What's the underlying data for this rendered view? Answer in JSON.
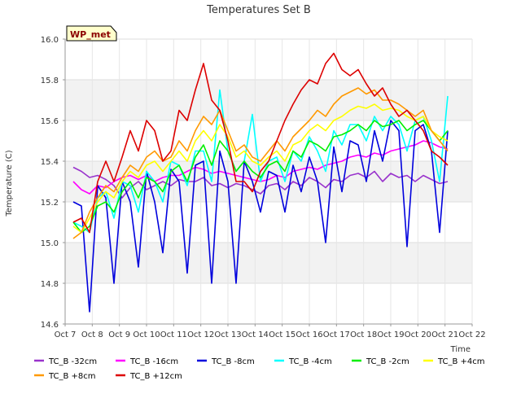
{
  "chart_data": {
    "type": "line",
    "title": "Temperatures Set B",
    "xlabel": "Time",
    "ylabel": "Temperature (C)",
    "badge": "WP_met",
    "xlim": [
      7,
      22
    ],
    "ylim": [
      14.6,
      16.0
    ],
    "x_ticks": [
      {
        "v": 7,
        "label": "Oct 7"
      },
      {
        "v": 8,
        "label": "Oct 8"
      },
      {
        "v": 9,
        "label": "Oct 9"
      },
      {
        "v": 10,
        "label": "Oct 10"
      },
      {
        "v": 11,
        "label": "Oct 11"
      },
      {
        "v": 12,
        "label": "Oct 12"
      },
      {
        "v": 13,
        "label": "Oct 13"
      },
      {
        "v": 14,
        "label": "Oct 14"
      },
      {
        "v": 15,
        "label": "Oct 15"
      },
      {
        "v": 16,
        "label": "Oct 16"
      },
      {
        "v": 17,
        "label": "Oct 17"
      },
      {
        "v": 18,
        "label": "Oct 18"
      },
      {
        "v": 19,
        "label": "Oct 19"
      },
      {
        "v": 20,
        "label": "Oct 20"
      },
      {
        "v": 21,
        "label": "Oct 21"
      },
      {
        "v": 22,
        "label": "Oct 22"
      }
    ],
    "y_ticks": [
      {
        "v": 14.6,
        "label": "14.6"
      },
      {
        "v": 14.8,
        "label": "14.8"
      },
      {
        "v": 15.0,
        "label": "15.0"
      },
      {
        "v": 15.2,
        "label": "15.2"
      },
      {
        "v": 15.4,
        "label": "15.4"
      },
      {
        "v": 15.6,
        "label": "15.6"
      },
      {
        "v": 15.8,
        "label": "15.8"
      },
      {
        "v": 16.0,
        "label": "16.0"
      }
    ],
    "grid": true,
    "legend_position": "bottom",
    "series": [
      {
        "name": "TC_B -32cm",
        "color": "#9933cc",
        "x": [
          7.3,
          7.6,
          7.9,
          8.2,
          8.5,
          8.8,
          9.1,
          9.4,
          9.7,
          10.0,
          10.3,
          10.6,
          10.9,
          11.2,
          11.5,
          11.8,
          12.1,
          12.4,
          12.7,
          13.0,
          13.3,
          13.6,
          13.9,
          14.2,
          14.5,
          14.8,
          15.1,
          15.4,
          15.7,
          16.0,
          16.3,
          16.6,
          16.9,
          17.2,
          17.5,
          17.8,
          18.1,
          18.4,
          18.7,
          19.0,
          19.3,
          19.6,
          19.9,
          20.2,
          20.5,
          20.8,
          21.1
        ],
        "y": [
          15.37,
          15.35,
          15.32,
          15.33,
          15.31,
          15.28,
          15.22,
          15.27,
          15.3,
          15.26,
          15.28,
          15.3,
          15.28,
          15.31,
          15.3,
          15.3,
          15.32,
          15.28,
          15.29,
          15.27,
          15.29,
          15.28,
          15.26,
          15.24,
          15.28,
          15.29,
          15.26,
          15.3,
          15.28,
          15.32,
          15.3,
          15.27,
          15.31,
          15.3,
          15.33,
          15.34,
          15.32,
          15.35,
          15.3,
          15.34,
          15.32,
          15.33,
          15.3,
          15.33,
          15.31,
          15.29,
          15.3
        ]
      },
      {
        "name": "TC_B -16cm",
        "color": "#ff00ff",
        "x": [
          7.3,
          7.6,
          7.9,
          8.2,
          8.5,
          8.8,
          9.1,
          9.4,
          9.7,
          10.0,
          10.3,
          10.6,
          10.9,
          11.2,
          11.5,
          11.8,
          12.1,
          12.4,
          12.7,
          13.0,
          13.3,
          13.6,
          13.9,
          14.2,
          14.5,
          14.8,
          15.1,
          15.4,
          15.7,
          16.0,
          16.3,
          16.6,
          16.9,
          17.2,
          17.5,
          17.8,
          18.1,
          18.4,
          18.7,
          19.0,
          19.3,
          19.6,
          19.9,
          20.2,
          20.5,
          20.8,
          21.1
        ],
        "y": [
          15.3,
          15.26,
          15.24,
          15.28,
          15.27,
          15.3,
          15.32,
          15.33,
          15.31,
          15.33,
          15.3,
          15.32,
          15.33,
          15.33,
          15.35,
          15.37,
          15.36,
          15.34,
          15.35,
          15.34,
          15.33,
          15.32,
          15.31,
          15.3,
          15.31,
          15.33,
          15.32,
          15.35,
          15.36,
          15.37,
          15.36,
          15.38,
          15.39,
          15.4,
          15.42,
          15.43,
          15.42,
          15.44,
          15.43,
          15.45,
          15.46,
          15.47,
          15.48,
          15.5,
          15.49,
          15.47,
          15.46
        ]
      },
      {
        "name": "TC_B -8cm",
        "color": "#0000dd",
        "x": [
          7.3,
          7.6,
          7.9,
          8.2,
          8.5,
          8.8,
          9.1,
          9.4,
          9.7,
          10.0,
          10.3,
          10.6,
          10.9,
          11.2,
          11.5,
          11.8,
          12.1,
          12.4,
          12.7,
          13.0,
          13.3,
          13.6,
          13.9,
          14.2,
          14.5,
          14.8,
          15.1,
          15.4,
          15.7,
          16.0,
          16.3,
          16.6,
          16.9,
          17.2,
          17.5,
          17.8,
          18.1,
          18.4,
          18.7,
          19.0,
          19.3,
          19.6,
          19.9,
          20.2,
          20.5,
          20.8,
          21.1
        ],
        "y": [
          15.2,
          15.18,
          14.66,
          15.28,
          15.22,
          14.8,
          15.3,
          15.2,
          14.88,
          15.35,
          15.2,
          14.95,
          15.36,
          15.3,
          14.85,
          15.38,
          15.4,
          14.8,
          15.45,
          15.3,
          14.8,
          15.4,
          15.3,
          15.15,
          15.35,
          15.33,
          15.15,
          15.38,
          15.25,
          15.42,
          15.3,
          15.0,
          15.47,
          15.25,
          15.5,
          15.48,
          15.3,
          15.55,
          15.4,
          15.6,
          15.55,
          14.98,
          15.55,
          15.58,
          15.45,
          15.05,
          15.55
        ]
      },
      {
        "name": "TC_B -4cm",
        "color": "#00ffff",
        "x": [
          7.3,
          7.6,
          7.9,
          8.2,
          8.5,
          8.8,
          9.1,
          9.4,
          9.7,
          10.0,
          10.3,
          10.6,
          10.9,
          11.2,
          11.5,
          11.8,
          12.1,
          12.4,
          12.7,
          13.0,
          13.3,
          13.6,
          13.9,
          14.2,
          14.5,
          14.8,
          15.1,
          15.4,
          15.7,
          16.0,
          16.3,
          16.6,
          16.9,
          17.2,
          17.5,
          17.8,
          18.1,
          18.4,
          18.7,
          19.0,
          19.3,
          19.6,
          19.9,
          20.2,
          20.5,
          20.8,
          21.1
        ],
        "y": [
          15.1,
          15.08,
          15.05,
          15.22,
          15.25,
          15.12,
          15.3,
          15.28,
          15.15,
          15.35,
          15.3,
          15.2,
          15.4,
          15.38,
          15.28,
          15.45,
          15.45,
          15.3,
          15.75,
          15.45,
          15.35,
          15.4,
          15.63,
          15.3,
          15.4,
          15.42,
          15.3,
          15.45,
          15.4,
          15.52,
          15.45,
          15.35,
          15.55,
          15.48,
          15.58,
          15.58,
          15.5,
          15.62,
          15.55,
          15.62,
          15.58,
          15.45,
          15.6,
          15.62,
          15.5,
          15.3,
          15.72
        ]
      },
      {
        "name": "TC_B -2cm",
        "color": "#00ee00",
        "x": [
          7.3,
          7.6,
          7.9,
          8.2,
          8.5,
          8.8,
          9.1,
          9.4,
          9.7,
          10.0,
          10.3,
          10.6,
          10.9,
          11.2,
          11.5,
          11.8,
          12.1,
          12.4,
          12.7,
          13.0,
          13.3,
          13.6,
          13.9,
          14.2,
          14.5,
          14.8,
          15.1,
          15.4,
          15.7,
          16.0,
          16.3,
          16.6,
          16.9,
          17.2,
          17.5,
          17.8,
          18.1,
          18.4,
          18.7,
          19.0,
          19.3,
          19.6,
          19.9,
          20.2,
          20.5,
          20.8,
          21.1
        ],
        "y": [
          15.1,
          15.05,
          15.08,
          15.18,
          15.2,
          15.15,
          15.25,
          15.3,
          15.22,
          15.32,
          15.3,
          15.25,
          15.35,
          15.38,
          15.3,
          15.42,
          15.48,
          15.38,
          15.5,
          15.45,
          15.35,
          15.4,
          15.35,
          15.32,
          15.38,
          15.4,
          15.35,
          15.45,
          15.42,
          15.5,
          15.48,
          15.45,
          15.52,
          15.53,
          15.55,
          15.58,
          15.55,
          15.6,
          15.57,
          15.58,
          15.6,
          15.55,
          15.58,
          15.6,
          15.55,
          15.5,
          15.55
        ]
      },
      {
        "name": "TC_B +4cm",
        "color": "#ffff00",
        "x": [
          7.3,
          7.6,
          7.9,
          8.2,
          8.5,
          8.8,
          9.1,
          9.4,
          9.7,
          10.0,
          10.3,
          10.6,
          10.9,
          11.2,
          11.5,
          11.8,
          12.1,
          12.4,
          12.7,
          13.0,
          13.3,
          13.6,
          13.9,
          14.2,
          14.5,
          14.8,
          15.1,
          15.4,
          15.7,
          16.0,
          16.3,
          16.6,
          16.9,
          17.2,
          17.5,
          17.8,
          18.1,
          18.4,
          18.7,
          19.0,
          19.3,
          19.6,
          19.9,
          20.2,
          20.5,
          20.8,
          21.1
        ],
        "y": [
          15.08,
          15.05,
          15.12,
          15.2,
          15.25,
          15.22,
          15.3,
          15.35,
          15.32,
          15.38,
          15.4,
          15.35,
          15.4,
          15.45,
          15.4,
          15.5,
          15.55,
          15.5,
          15.58,
          15.52,
          15.42,
          15.45,
          15.4,
          15.38,
          15.42,
          15.45,
          15.4,
          15.48,
          15.5,
          15.55,
          15.58,
          15.55,
          15.6,
          15.62,
          15.65,
          15.67,
          15.66,
          15.68,
          15.65,
          15.66,
          15.65,
          15.62,
          15.6,
          15.62,
          15.55,
          15.52,
          15.5
        ]
      },
      {
        "name": "TC_B +8cm",
        "color": "#ff9900",
        "x": [
          7.3,
          7.6,
          7.9,
          8.2,
          8.5,
          8.8,
          9.1,
          9.4,
          9.7,
          10.0,
          10.3,
          10.6,
          10.9,
          11.2,
          11.5,
          11.8,
          12.1,
          12.4,
          12.7,
          13.0,
          13.3,
          13.6,
          13.9,
          14.2,
          14.5,
          14.8,
          15.1,
          15.4,
          15.7,
          16.0,
          16.3,
          16.6,
          16.9,
          17.2,
          17.5,
          17.8,
          18.1,
          18.4,
          18.7,
          19.0,
          19.3,
          19.6,
          19.9,
          20.2,
          20.5,
          20.8,
          21.1
        ],
        "y": [
          15.02,
          15.05,
          15.15,
          15.22,
          15.28,
          15.25,
          15.32,
          15.38,
          15.35,
          15.42,
          15.45,
          15.4,
          15.42,
          15.5,
          15.45,
          15.55,
          15.62,
          15.58,
          15.65,
          15.55,
          15.45,
          15.48,
          15.42,
          15.4,
          15.45,
          15.5,
          15.45,
          15.52,
          15.56,
          15.6,
          15.65,
          15.62,
          15.68,
          15.72,
          15.74,
          15.76,
          15.73,
          15.75,
          15.7,
          15.7,
          15.68,
          15.65,
          15.62,
          15.65,
          15.55,
          15.5,
          15.45
        ]
      },
      {
        "name": "TC_B +12cm",
        "color": "#dd0000",
        "x": [
          7.3,
          7.6,
          7.9,
          8.2,
          8.5,
          8.8,
          9.1,
          9.4,
          9.7,
          10.0,
          10.3,
          10.6,
          10.9,
          11.2,
          11.5,
          11.8,
          12.1,
          12.4,
          12.7,
          13.0,
          13.3,
          13.6,
          13.9,
          14.2,
          14.5,
          14.8,
          15.1,
          15.4,
          15.7,
          16.0,
          16.3,
          16.6,
          16.9,
          17.2,
          17.5,
          17.8,
          18.1,
          18.4,
          18.7,
          19.0,
          19.3,
          19.6,
          19.9,
          20.2,
          20.5,
          20.8,
          21.1
        ],
        "y": [
          15.1,
          15.12,
          15.05,
          15.3,
          15.4,
          15.3,
          15.42,
          15.55,
          15.45,
          15.6,
          15.55,
          15.4,
          15.45,
          15.65,
          15.6,
          15.75,
          15.88,
          15.7,
          15.65,
          15.5,
          15.3,
          15.3,
          15.25,
          15.35,
          15.4,
          15.5,
          15.6,
          15.68,
          15.75,
          15.8,
          15.78,
          15.88,
          15.93,
          15.85,
          15.82,
          15.85,
          15.78,
          15.72,
          15.76,
          15.68,
          15.62,
          15.65,
          15.6,
          15.55,
          15.45,
          15.42,
          15.38
        ]
      }
    ]
  }
}
